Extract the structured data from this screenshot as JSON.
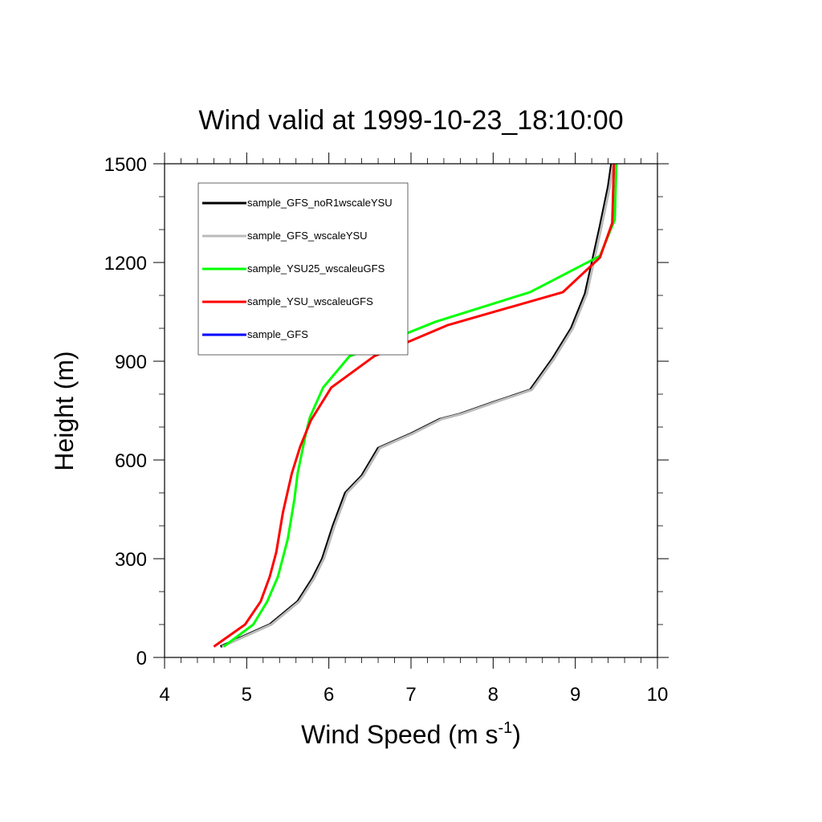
{
  "chart_data": {
    "type": "line",
    "title": "Wind valid at 1999-10-23_18:10:00",
    "xlabel": "Wind Speed (m s",
    "xlabel_superscript": "-1",
    "xlabel_suffix": ")",
    "ylabel": "Height (m)",
    "xlim": [
      4,
      10
    ],
    "ylim": [
      0,
      1500
    ],
    "xticks": [
      "4",
      "5",
      "6",
      "7",
      "8",
      "9",
      "10"
    ],
    "yticks": [
      "0",
      "300",
      "600",
      "900",
      "1200",
      "1500"
    ],
    "grid": false,
    "legend_position": "top-left",
    "series": [
      {
        "name": "sample_GFS_noR1wscaleYSU",
        "color": "#000000",
        "points": [
          [
            4.68,
            33
          ],
          [
            5.28,
            100
          ],
          [
            5.62,
            170
          ],
          [
            5.8,
            240
          ],
          [
            5.92,
            300
          ],
          [
            6.05,
            400
          ],
          [
            6.2,
            500
          ],
          [
            6.4,
            552
          ],
          [
            6.6,
            636
          ],
          [
            7.0,
            680
          ],
          [
            7.35,
            724
          ],
          [
            7.6,
            740
          ],
          [
            8.0,
            775
          ],
          [
            8.45,
            813
          ],
          [
            8.72,
            907
          ],
          [
            8.95,
            1000
          ],
          [
            9.12,
            1105
          ],
          [
            9.3,
            1310
          ],
          [
            9.4,
            1430
          ],
          [
            9.44,
            1500
          ]
        ]
      },
      {
        "name": "sample_GFS_wscaleYSU",
        "color": "#bbbbbb",
        "points": [
          [
            4.7,
            33
          ],
          [
            5.3,
            100
          ],
          [
            5.64,
            170
          ],
          [
            5.82,
            240
          ],
          [
            5.94,
            300
          ],
          [
            6.07,
            400
          ],
          [
            6.22,
            500
          ],
          [
            6.42,
            552
          ],
          [
            6.62,
            636
          ],
          [
            7.02,
            680
          ],
          [
            7.37,
            724
          ],
          [
            7.62,
            740
          ],
          [
            8.02,
            775
          ],
          [
            8.47,
            813
          ],
          [
            8.74,
            907
          ],
          [
            8.97,
            1000
          ],
          [
            9.14,
            1105
          ],
          [
            9.32,
            1310
          ],
          [
            9.42,
            1430
          ],
          [
            9.46,
            1500
          ]
        ]
      },
      {
        "name": "sample_YSU25_wscaleuGFS",
        "color": "#00ff00",
        "points": [
          [
            4.72,
            33
          ],
          [
            5.08,
            100
          ],
          [
            5.25,
            170
          ],
          [
            5.38,
            245
          ],
          [
            5.5,
            360
          ],
          [
            5.58,
            480
          ],
          [
            5.62,
            560
          ],
          [
            5.72,
            680
          ],
          [
            5.77,
            730
          ],
          [
            5.93,
            820
          ],
          [
            6.25,
            915
          ],
          [
            7.3,
            1020
          ],
          [
            8.45,
            1110
          ],
          [
            9.3,
            1220
          ],
          [
            9.48,
            1330
          ],
          [
            9.5,
            1500
          ]
        ]
      },
      {
        "name": "sample_YSU_wscaleuGFS",
        "color": "#ff0000",
        "points": [
          [
            4.6,
            33
          ],
          [
            4.98,
            100
          ],
          [
            5.17,
            170
          ],
          [
            5.28,
            245
          ],
          [
            5.36,
            320
          ],
          [
            5.44,
            440
          ],
          [
            5.55,
            560
          ],
          [
            5.65,
            640
          ],
          [
            5.78,
            720
          ],
          [
            6.03,
            820
          ],
          [
            6.55,
            915
          ],
          [
            7.45,
            1010
          ],
          [
            8.85,
            1110
          ],
          [
            9.3,
            1215
          ],
          [
            9.45,
            1320
          ],
          [
            9.47,
            1500
          ]
        ]
      },
      {
        "name": "sample_GFS",
        "color": "#0000ff",
        "points": []
      }
    ]
  }
}
